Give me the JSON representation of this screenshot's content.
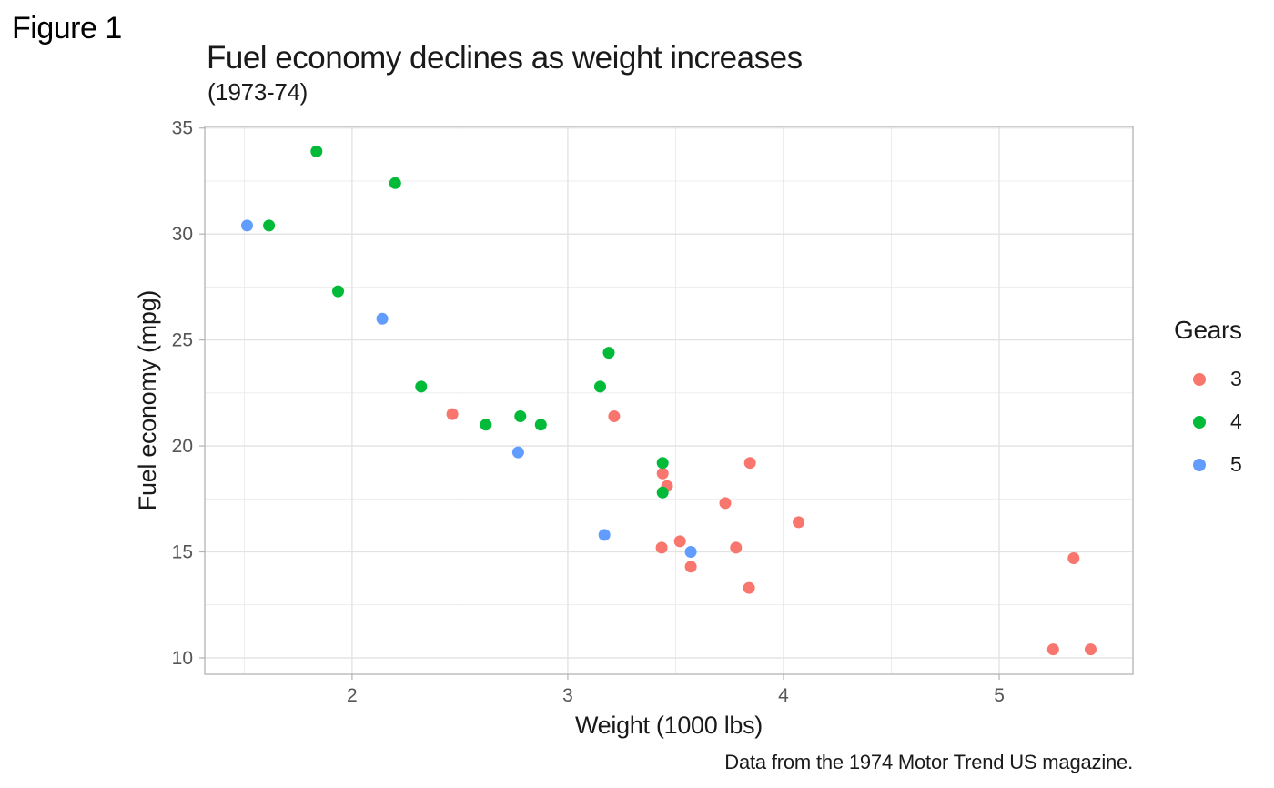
{
  "figure_label": "Figure 1",
  "chart_data": {
    "type": "scatter",
    "title": "Fuel economy declines as weight increases",
    "subtitle": "(1973-74)",
    "caption": "Data from the 1974 Motor Trend US magazine.",
    "xlabel": "Weight (1000 lbs)",
    "ylabel": "Fuel economy (mpg)",
    "xlim": [
      1.317,
      5.62
    ],
    "ylim": [
      9.225,
      35.075
    ],
    "x_major_ticks": [
      2,
      3,
      4,
      5
    ],
    "x_minor_ticks": [
      1.5,
      2.5,
      3.5,
      4.5,
      5.5
    ],
    "y_major_ticks": [
      10,
      15,
      20,
      25,
      30,
      35
    ],
    "y_minor_ticks": [
      12.5,
      17.5,
      22.5,
      27.5,
      32.5
    ],
    "grid": true,
    "legend": {
      "title": "Gears",
      "position": "right"
    },
    "series": [
      {
        "name": "3",
        "color": "#F8766D",
        "points": [
          [
            2.465,
            21.5
          ],
          [
            3.215,
            21.4
          ],
          [
            3.44,
            18.7
          ],
          [
            3.46,
            18.1
          ],
          [
            3.435,
            15.2
          ],
          [
            3.52,
            15.5
          ],
          [
            3.57,
            14.3
          ],
          [
            3.73,
            17.3
          ],
          [
            3.78,
            15.2
          ],
          [
            3.84,
            13.3
          ],
          [
            3.845,
            19.2
          ],
          [
            4.07,
            16.4
          ],
          [
            5.25,
            10.4
          ],
          [
            5.345,
            14.7
          ],
          [
            5.424,
            10.4
          ]
        ]
      },
      {
        "name": "4",
        "color": "#00BA38",
        "points": [
          [
            1.615,
            30.4
          ],
          [
            1.835,
            33.9
          ],
          [
            1.935,
            27.3
          ],
          [
            2.2,
            32.4
          ],
          [
            2.32,
            22.8
          ],
          [
            2.62,
            21.0
          ],
          [
            2.78,
            21.4
          ],
          [
            2.875,
            21.0
          ],
          [
            3.15,
            22.8
          ],
          [
            3.19,
            24.4
          ],
          [
            3.44,
            19.2
          ],
          [
            3.44,
            17.8
          ]
        ]
      },
      {
        "name": "5",
        "color": "#619CFF",
        "points": [
          [
            1.513,
            30.4
          ],
          [
            2.14,
            26.0
          ],
          [
            2.77,
            19.7
          ],
          [
            3.17,
            15.8
          ],
          [
            3.57,
            15.0
          ]
        ]
      }
    ]
  },
  "theme": {
    "background": "#FFFFFF",
    "text_color": "#1A1A1A",
    "tick_label_color": "#555555",
    "grid_major_color": "#E2E2E2",
    "grid_minor_color": "#EBEBEB",
    "panel_border_color": "#B3B3B3",
    "point_radius": 6.5
  }
}
